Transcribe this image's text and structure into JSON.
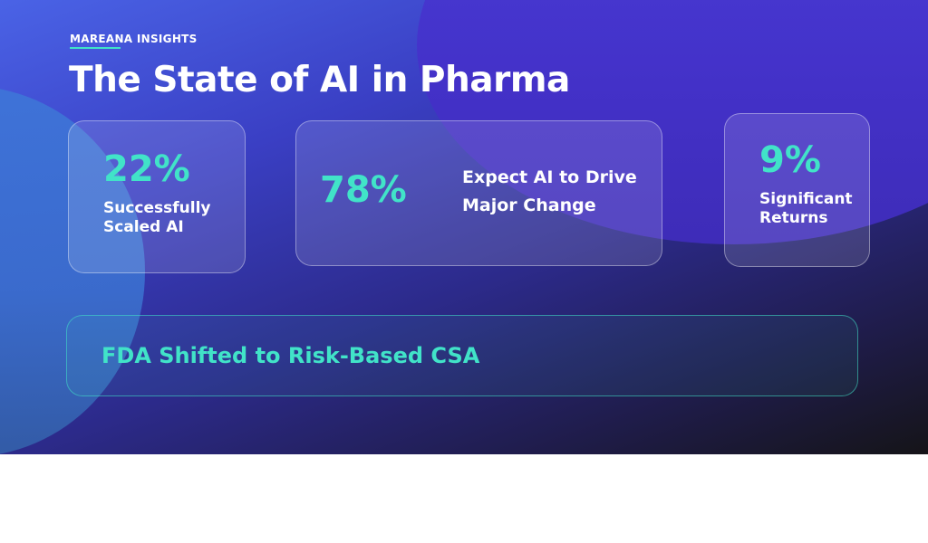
{
  "header": {
    "eyebrow": "MAREANA INSIGHTS",
    "title": "The State of AI in Pharma"
  },
  "stats": [
    {
      "value": "22%",
      "label_line1": "Successfully",
      "label_line2": "Scaled AI"
    },
    {
      "value": "78%",
      "label_line1": "Expect AI to Drive",
      "label_line2": "Major Change"
    },
    {
      "value": "9%",
      "label_line1": "Significant",
      "label_line2": "Returns"
    }
  ],
  "callout": {
    "text": "FDA Shifted to Risk-Based CSA"
  },
  "colors": {
    "accent": "#41e3c8",
    "text": "#ffffff",
    "background_start": "#4a63e6",
    "background_end": "#151418"
  }
}
